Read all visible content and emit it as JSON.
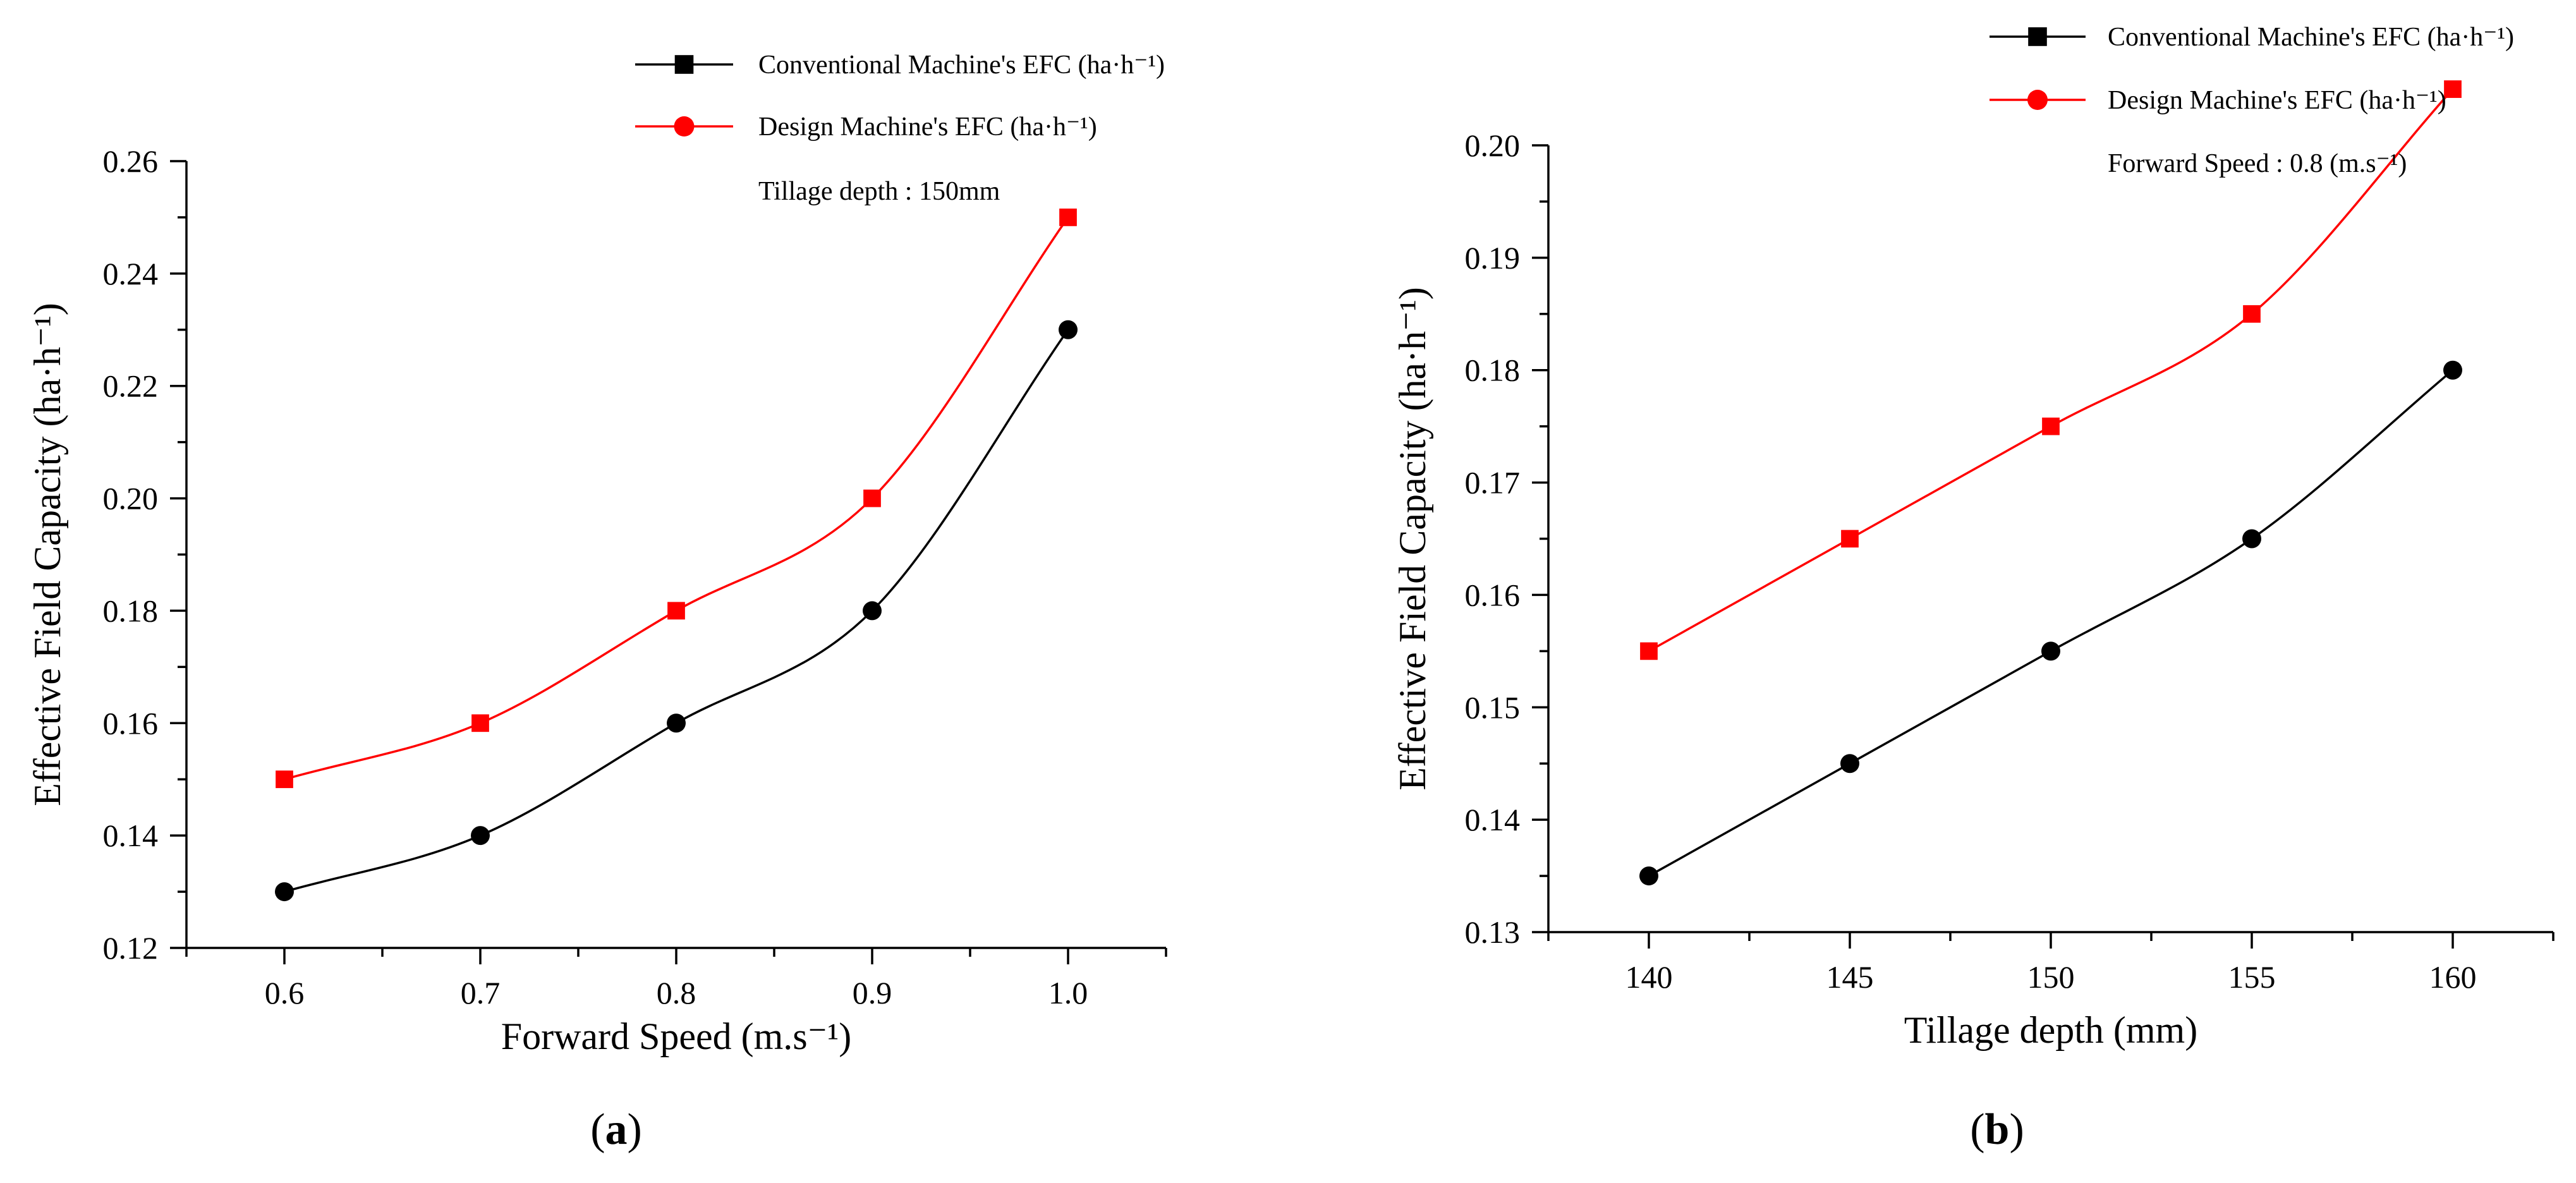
{
  "chart_data": [
    {
      "type": "line",
      "panel_label": "a",
      "x": [
        0.6,
        0.7,
        0.8,
        0.9,
        1.0
      ],
      "x_tick_labels": [
        "0.6",
        "0.7",
        "0.8",
        "0.9",
        "1.0"
      ],
      "xlim": [
        0.55,
        1.05
      ],
      "ylim": [
        0.12,
        0.26
      ],
      "y_ticks": [
        0.12,
        0.14,
        0.16,
        0.18,
        0.2,
        0.22,
        0.24,
        0.26
      ],
      "y_tick_labels": [
        "0.12",
        "0.14",
        "0.16",
        "0.18",
        "0.20",
        "0.22",
        "0.24",
        "0.26"
      ],
      "xlabel": "Forward Speed (m.s⁻¹)",
      "ylabel": "Effective Field Capacity (ha·h⁻¹)",
      "grid": false,
      "legend_position": "top-right",
      "annotation": "Tillage depth : 150mm",
      "series": [
        {
          "name": "Conventional Machine's EFC (ha·h⁻¹)",
          "color": "#000000",
          "legend_marker": "square",
          "marker": "circle",
          "values": [
            0.13,
            0.14,
            0.16,
            0.18,
            0.23
          ]
        },
        {
          "name": "Design Machine's EFC (ha·h⁻¹)",
          "color": "#ff0000",
          "legend_marker": "circle",
          "marker": "square",
          "values": [
            0.15,
            0.16,
            0.18,
            0.2,
            0.25
          ]
        }
      ]
    },
    {
      "type": "line",
      "panel_label": "b",
      "x": [
        140,
        145,
        150,
        155,
        160
      ],
      "x_tick_labels": [
        "140",
        "145",
        "150",
        "155",
        "160"
      ],
      "xlim": [
        137.5,
        162.5
      ],
      "ylim": [
        0.13,
        0.2
      ],
      "y_ticks": [
        0.13,
        0.14,
        0.15,
        0.16,
        0.17,
        0.18,
        0.19,
        0.2
      ],
      "y_tick_labels": [
        "0.13",
        "0.14",
        "0.15",
        "0.16",
        "0.17",
        "0.18",
        "0.19",
        "0.20"
      ],
      "xlabel": "Tillage depth (mm)",
      "ylabel": "Effective Field Capacity (ha·h⁻¹)",
      "grid": false,
      "legend_position": "top-right",
      "annotation": "Forward Speed : 0.8 (m.s⁻¹)",
      "series": [
        {
          "name": "Conventional Machine's EFC (ha·h⁻¹)",
          "color": "#000000",
          "legend_marker": "square",
          "marker": "circle",
          "values": [
            0.135,
            0.145,
            0.155,
            0.165,
            0.18
          ]
        },
        {
          "name": "Design Machine's EFC (ha·h⁻¹)",
          "color": "#ff0000",
          "legend_marker": "circle",
          "marker": "square",
          "values": [
            0.155,
            0.165,
            0.175,
            0.185,
            0.205
          ]
        }
      ]
    }
  ]
}
